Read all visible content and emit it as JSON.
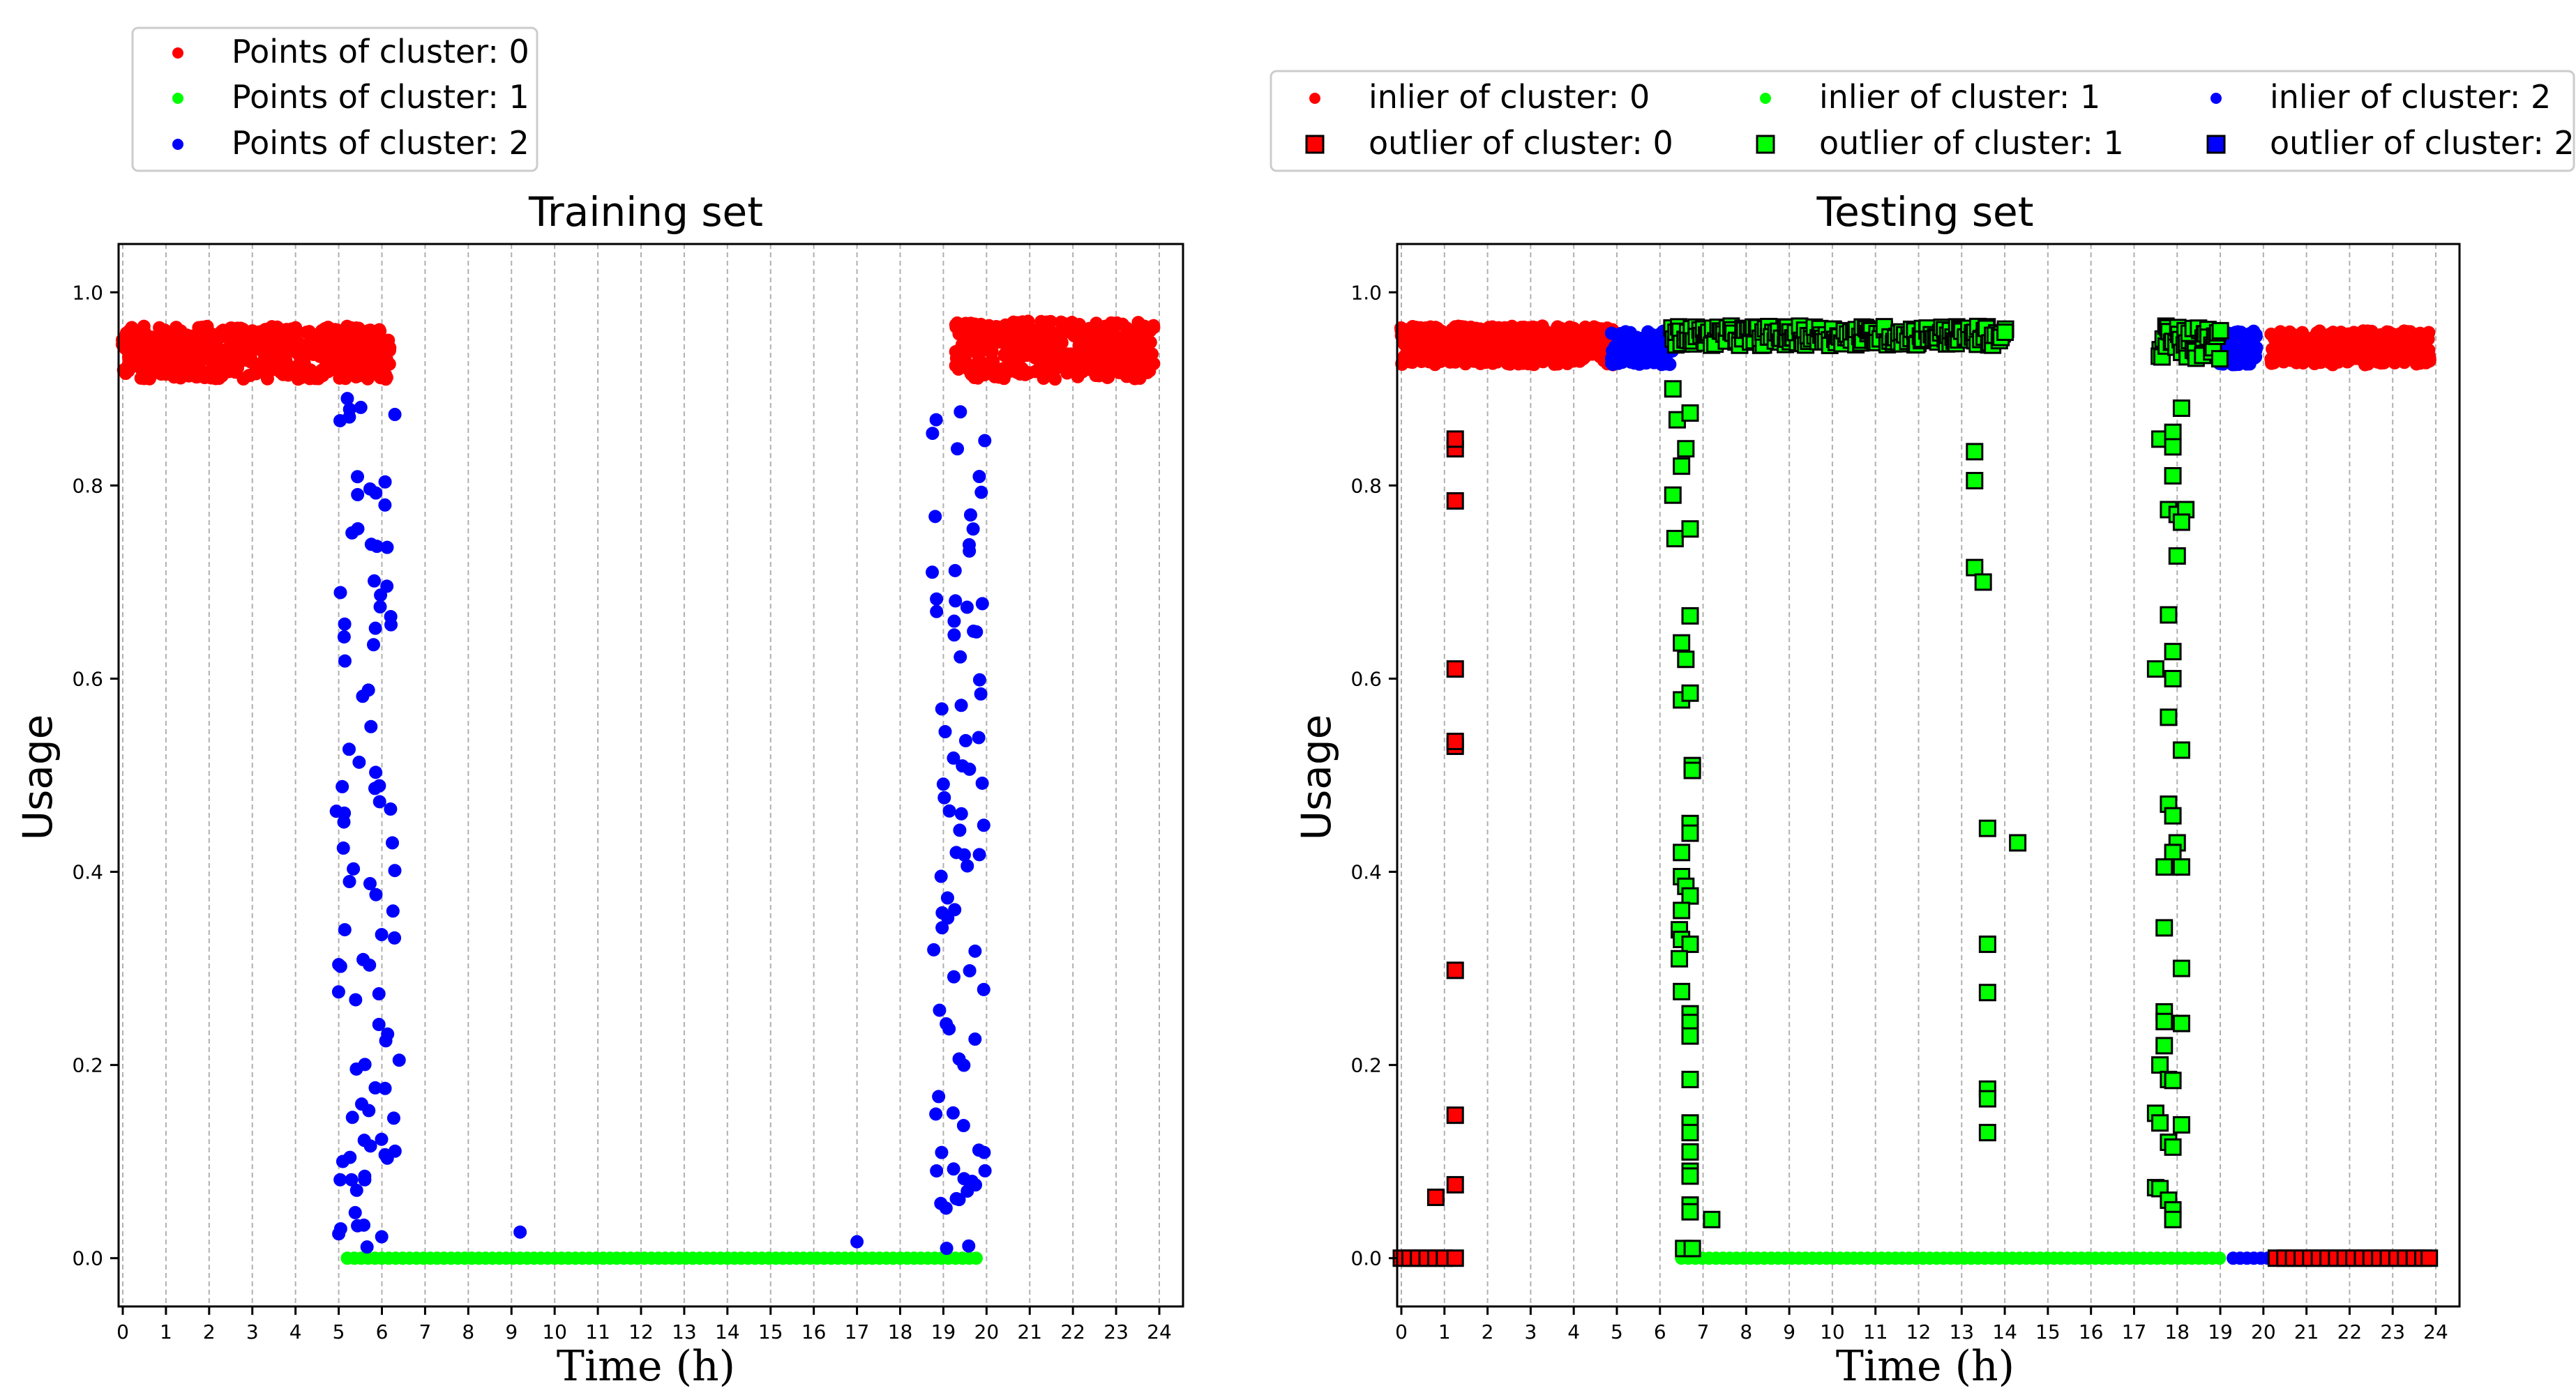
{
  "chart_data": [
    {
      "type": "scatter",
      "title": "Training set",
      "xlabel": "Time (h)",
      "ylabel": "Usage",
      "xlim": [
        0,
        24
      ],
      "ylim": [
        -0.05,
        1.05
      ],
      "x_ticks": [
        "0",
        "1",
        "2",
        "3",
        "4",
        "5",
        "6",
        "7",
        "8",
        "9",
        "10",
        "11",
        "12",
        "13",
        "14",
        "15",
        "16",
        "17",
        "18",
        "19",
        "20",
        "21",
        "22",
        "23",
        "24"
      ],
      "y_ticks": [
        "0.0",
        "0.2",
        "0.4",
        "0.6",
        "0.8",
        "1.0"
      ],
      "grid": "vertical dashed lines at each hour",
      "legend_position": "top-left",
      "legend": [
        {
          "label": "Points of cluster: 0",
          "color": "#ff0000",
          "marker": "dot"
        },
        {
          "label": "Points of cluster: 1",
          "color": "#00ff00",
          "marker": "dot"
        },
        {
          "label": "Points of cluster: 2",
          "color": "#0000ff",
          "marker": "dot"
        }
      ],
      "series": [
        {
          "name": "Points of cluster: 0",
          "color": "#ff0000",
          "description": "dense band of usage between 0.91 and 0.97 from 0h to 6.2h and from 19.3h to 24h",
          "bands": [
            {
              "x_from": 0.0,
              "x_to": 6.2,
              "y_from": 0.91,
              "y_to": 0.965
            },
            {
              "x_from": 19.3,
              "x_to": 23.9,
              "y_from": 0.91,
              "y_to": 0.97
            }
          ]
        },
        {
          "name": "Points of cluster: 1",
          "color": "#00ff00",
          "description": "points at usage 0.0 from 5.2h to 19.9h",
          "bands": [
            {
              "x_from": 5.2,
              "x_to": 19.9,
              "y_from": 0.0,
              "y_to": 0.0
            }
          ]
        },
        {
          "name": "Points of cluster: 2",
          "color": "#0000ff",
          "description": "scattered transitions between 0 and 0.9 around 5h-6.5h and 18.8h-20h, plus isolated points",
          "bands": [
            {
              "x_from": 5.0,
              "x_to": 6.3,
              "y_from": 0.01,
              "y_to": 0.89
            },
            {
              "x_from": 18.8,
              "x_to": 20.0,
              "y_from": 0.01,
              "y_to": 0.89
            }
          ],
          "points": [
            [
              9.2,
              0.027
            ],
            [
              17.0,
              0.017
            ],
            [
              6.4,
              0.205
            ],
            [
              6.2,
              0.465
            ],
            [
              5.2,
              0.89
            ],
            [
              19.3,
              0.42
            ]
          ]
        }
      ]
    },
    {
      "type": "scatter",
      "title": "Testing set",
      "xlabel": "Time (h)",
      "ylabel": "Usage",
      "xlim": [
        0,
        24
      ],
      "ylim": [
        -0.05,
        1.05
      ],
      "x_ticks": [
        "0",
        "1",
        "2",
        "3",
        "4",
        "5",
        "6",
        "7",
        "8",
        "9",
        "10",
        "11",
        "12",
        "13",
        "14",
        "15",
        "16",
        "17",
        "18",
        "19",
        "20",
        "21",
        "22",
        "23",
        "24"
      ],
      "y_ticks": [
        "0.0",
        "0.2",
        "0.4",
        "0.6",
        "0.8",
        "1.0"
      ],
      "grid": "vertical dashed lines at each hour",
      "legend_position": "top-right",
      "legend": [
        {
          "label": "inlier of cluster: 0",
          "color": "#ff0000",
          "marker": "dot"
        },
        {
          "label": "inlier of cluster: 1",
          "color": "#00ff00",
          "marker": "dot"
        },
        {
          "label": "inlier of cluster: 2",
          "color": "#0000ff",
          "marker": "dot"
        },
        {
          "label": "outlier of cluster: 0",
          "color": "#ff0000",
          "marker": "square"
        },
        {
          "label": "outlier of cluster: 1",
          "color": "#00ff00",
          "marker": "square"
        },
        {
          "label": "outlier of cluster: 2",
          "color": "#0000ff",
          "marker": "square"
        }
      ],
      "series": [
        {
          "name": "inlier of cluster: 0",
          "color": "#ff0000",
          "marker": "dot",
          "bands": [
            {
              "x_from": 0.0,
              "x_to": 4.9,
              "y_from": 0.925,
              "y_to": 0.965
            },
            {
              "x_from": 20.2,
              "x_to": 23.9,
              "y_from": 0.925,
              "y_to": 0.96
            }
          ]
        },
        {
          "name": "inlier of cluster: 1",
          "color": "#00ff00",
          "marker": "dot",
          "bands": [
            {
              "x_from": 6.5,
              "x_to": 19.1,
              "y_from": 0.0,
              "y_to": 0.0
            }
          ]
        },
        {
          "name": "inlier of cluster: 2",
          "color": "#0000ff",
          "marker": "dot",
          "bands": [
            {
              "x_from": 4.9,
              "x_to": 6.3,
              "y_from": 0.925,
              "y_to": 0.96
            },
            {
              "x_from": 19.0,
              "x_to": 19.9,
              "y_from": 0.925,
              "y_to": 0.96
            },
            {
              "x_from": 19.3,
              "x_to": 20.1,
              "y_from": 0.0,
              "y_to": 0.0
            }
          ]
        },
        {
          "name": "outlier of cluster: 0",
          "color": "#ff0000",
          "marker": "square",
          "points": [
            [
              0.0,
              0.0
            ],
            [
              0.2,
              0.0
            ],
            [
              0.4,
              0.0
            ],
            [
              0.6,
              0.0
            ],
            [
              0.8,
              0.0
            ],
            [
              1.0,
              0.0
            ],
            [
              1.25,
              0.0
            ],
            [
              0.8,
              0.063
            ],
            [
              1.25,
              0.076
            ],
            [
              1.25,
              0.148
            ],
            [
              1.25,
              0.298
            ],
            [
              1.25,
              0.53
            ],
            [
              1.25,
              0.535
            ],
            [
              1.25,
              0.61
            ],
            [
              1.25,
              0.784
            ],
            [
              1.25,
              0.838
            ],
            [
              1.25,
              0.848
            ],
            [
              20.3,
              0.0
            ],
            [
              20.5,
              0.0
            ],
            [
              20.7,
              0.0
            ],
            [
              20.9,
              0.0
            ],
            [
              21.1,
              0.0
            ],
            [
              21.3,
              0.0
            ],
            [
              21.5,
              0.0
            ],
            [
              21.7,
              0.0
            ],
            [
              21.9,
              0.0
            ],
            [
              22.1,
              0.0
            ],
            [
              22.3,
              0.0
            ],
            [
              22.5,
              0.0
            ],
            [
              22.7,
              0.0
            ],
            [
              22.9,
              0.0
            ],
            [
              23.1,
              0.0
            ],
            [
              23.3,
              0.0
            ],
            [
              23.5,
              0.0
            ],
            [
              23.7,
              0.0
            ],
            [
              23.85,
              0.0
            ]
          ]
        },
        {
          "name": "outlier of cluster: 1",
          "color": "#00ff00",
          "marker": "square",
          "description": "band of squares at ~0.95 from 6.3h to 14h and 17.6h to 19h, plus vertical scatter near 6.5h, 13.5h and 18h",
          "bands": [
            {
              "x_from": 6.3,
              "x_to": 14.0,
              "y_from": 0.945,
              "y_to": 0.965
            },
            {
              "x_from": 17.6,
              "x_to": 19.0,
              "y_from": 0.93,
              "y_to": 0.965
            }
          ],
          "points": [
            [
              6.3,
              0.9
            ],
            [
              6.4,
              0.868
            ],
            [
              6.5,
              0.82
            ],
            [
              6.6,
              0.838
            ],
            [
              6.7,
              0.875
            ],
            [
              6.3,
              0.79
            ],
            [
              6.35,
              0.745
            ],
            [
              6.7,
              0.755
            ],
            [
              6.7,
              0.665
            ],
            [
              6.5,
              0.637
            ],
            [
              6.6,
              0.62
            ],
            [
              6.5,
              0.578
            ],
            [
              6.7,
              0.585
            ],
            [
              6.75,
              0.51
            ],
            [
              6.75,
              0.505
            ],
            [
              6.7,
              0.45
            ],
            [
              6.7,
              0.44
            ],
            [
              6.5,
              0.42
            ],
            [
              6.5,
              0.395
            ],
            [
              6.6,
              0.385
            ],
            [
              6.7,
              0.375
            ],
            [
              6.5,
              0.36
            ],
            [
              6.45,
              0.34
            ],
            [
              6.5,
              0.33
            ],
            [
              6.7,
              0.325
            ],
            [
              6.45,
              0.31
            ],
            [
              6.5,
              0.276
            ],
            [
              6.7,
              0.253
            ],
            [
              6.7,
              0.244
            ],
            [
              6.7,
              0.23
            ],
            [
              6.7,
              0.185
            ],
            [
              6.7,
              0.14
            ],
            [
              6.7,
              0.13
            ],
            [
              6.7,
              0.11
            ],
            [
              6.7,
              0.09
            ],
            [
              6.7,
              0.085
            ],
            [
              6.7,
              0.055
            ],
            [
              6.7,
              0.048
            ],
            [
              7.2,
              0.04
            ],
            [
              6.55,
              0.01
            ],
            [
              6.75,
              0.01
            ],
            [
              13.3,
              0.835
            ],
            [
              13.3,
              0.805
            ],
            [
              13.3,
              0.715
            ],
            [
              13.5,
              0.7
            ],
            [
              13.6,
              0.445
            ],
            [
              14.3,
              0.43
            ],
            [
              13.6,
              0.325
            ],
            [
              13.6,
              0.275
            ],
            [
              13.6,
              0.175
            ],
            [
              13.6,
              0.165
            ],
            [
              13.6,
              0.13
            ],
            [
              17.6,
              0.848
            ],
            [
              17.9,
              0.855
            ],
            [
              17.9,
              0.84
            ],
            [
              18.1,
              0.88
            ],
            [
              17.9,
              0.81
            ],
            [
              17.8,
              0.775
            ],
            [
              18.0,
              0.77
            ],
            [
              18.2,
              0.775
            ],
            [
              18.1,
              0.762
            ],
            [
              18.0,
              0.727
            ],
            [
              17.8,
              0.666
            ],
            [
              17.9,
              0.628
            ],
            [
              17.5,
              0.61
            ],
            [
              17.9,
              0.6
            ],
            [
              17.8,
              0.56
            ],
            [
              18.1,
              0.526
            ],
            [
              17.8,
              0.47
            ],
            [
              17.9,
              0.458
            ],
            [
              18.0,
              0.43
            ],
            [
              17.9,
              0.42
            ],
            [
              18.1,
              0.405
            ],
            [
              17.7,
              0.405
            ],
            [
              17.7,
              0.342
            ],
            [
              18.1,
              0.3
            ],
            [
              17.7,
              0.255
            ],
            [
              17.7,
              0.245
            ],
            [
              18.1,
              0.243
            ],
            [
              17.7,
              0.22
            ],
            [
              17.6,
              0.2
            ],
            [
              17.8,
              0.185
            ],
            [
              17.9,
              0.184
            ],
            [
              17.5,
              0.15
            ],
            [
              17.6,
              0.14
            ],
            [
              18.1,
              0.138
            ],
            [
              17.8,
              0.12
            ],
            [
              17.9,
              0.115
            ],
            [
              17.5,
              0.073
            ],
            [
              17.6,
              0.072
            ],
            [
              17.8,
              0.06
            ],
            [
              17.9,
              0.05
            ],
            [
              17.9,
              0.04
            ]
          ]
        },
        {
          "name": "outlier of cluster: 2",
          "color": "#0000ff",
          "marker": "square",
          "points": []
        }
      ]
    }
  ]
}
